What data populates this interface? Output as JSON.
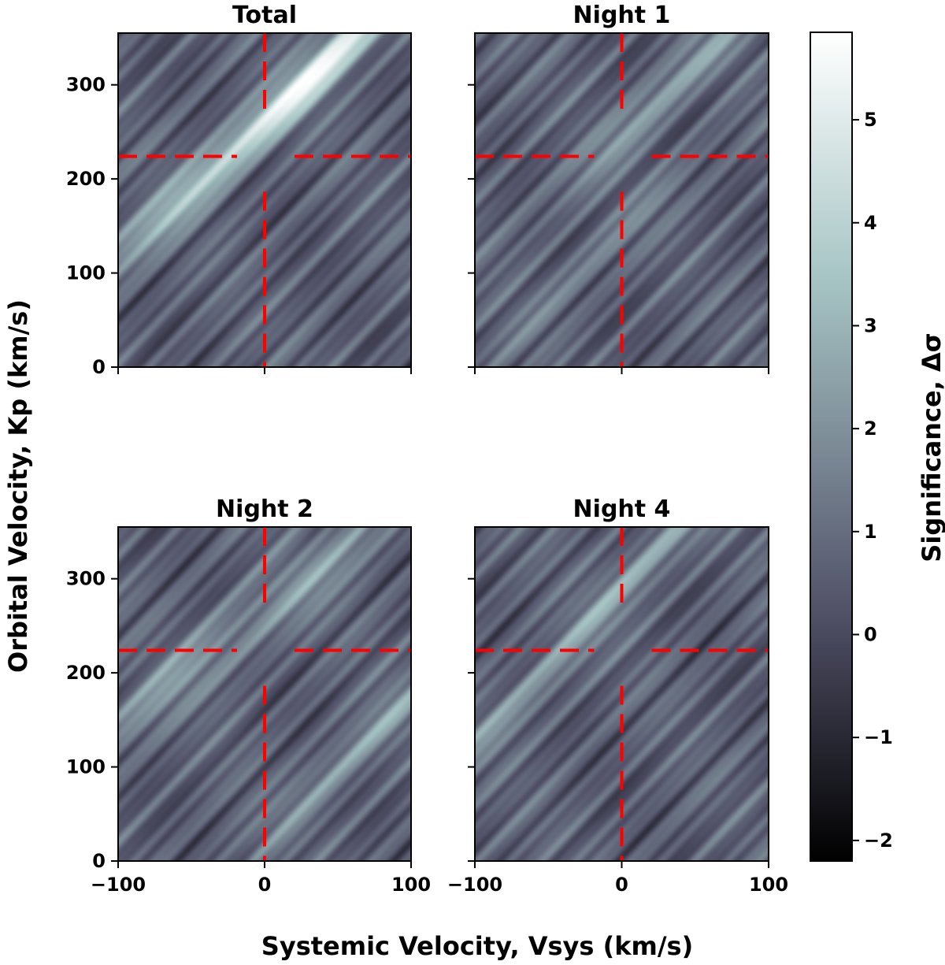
{
  "figure": {
    "ylabel": "Orbital Velocity, Kp (km/s)",
    "xlabel": "Systemic Velocity, Vsys (km/s)",
    "colorbar": {
      "label": "Significance, Δσ",
      "range": [
        -2.2,
        5.85
      ],
      "ticks": [
        -2,
        -1,
        0,
        1,
        2,
        3,
        4,
        5
      ],
      "tick_labels": [
        "−2",
        "−1",
        "0",
        "1",
        "2",
        "3",
        "4",
        "5"
      ],
      "colormap": "bone",
      "colors": [
        "#000000",
        "#515168",
        "#a6c4c4",
        "#ffffff"
      ]
    },
    "marker_color": "#ff0000"
  },
  "chart_data": [
    {
      "type": "heatmap",
      "title": "Total",
      "xlim": [
        -100,
        100
      ],
      "ylim": [
        0,
        355
      ],
      "xticks": [
        -100,
        0,
        100
      ],
      "xtick_labels": [
        "−100",
        "0",
        "100"
      ],
      "yticks": [
        0,
        100,
        200,
        300
      ],
      "ytick_labels": [
        "0",
        "100",
        "200",
        "300"
      ],
      "marker": {
        "vsys": 0,
        "kp": 224
      },
      "peaks": [
        {
          "vsys": 45,
          "kp": 325,
          "sigma": 5.8
        },
        {
          "vsys": -75,
          "kp": 150,
          "sigma": 2.6
        },
        {
          "vsys": -45,
          "kp": 205,
          "sigma": 2.2
        }
      ]
    },
    {
      "type": "heatmap",
      "title": "Night 1",
      "xlim": [
        -100,
        100
      ],
      "ylim": [
        0,
        355
      ],
      "xticks": [
        -100,
        0,
        100
      ],
      "xtick_labels": [
        "−100",
        "0",
        "100"
      ],
      "yticks": [
        0,
        100,
        200,
        300
      ],
      "ytick_labels": [
        "",
        "",
        "",
        ""
      ],
      "marker": {
        "vsys": 0,
        "kp": 224
      },
      "peaks": [
        {
          "vsys": 35,
          "kp": 300,
          "sigma": 3.2
        },
        {
          "vsys": -15,
          "kp": 120,
          "sigma": 2.2
        }
      ]
    },
    {
      "type": "heatmap",
      "title": "Night 2",
      "xlim": [
        -100,
        100
      ],
      "ylim": [
        0,
        355
      ],
      "xticks": [
        -100,
        0,
        100
      ],
      "xtick_labels": [
        "−100",
        "0",
        "100"
      ],
      "yticks": [
        0,
        100,
        200,
        300
      ],
      "ytick_labels": [
        "0",
        "100",
        "200",
        "300"
      ],
      "marker": {
        "vsys": 0,
        "kp": 224
      },
      "peaks": [
        {
          "vsys": 50,
          "kp": 320,
          "sigma": 3.0
        },
        {
          "vsys": -65,
          "kp": 190,
          "sigma": 3.0
        },
        {
          "vsys": 70,
          "kp": 130,
          "sigma": 3.0
        }
      ]
    },
    {
      "type": "heatmap",
      "title": "Night 4",
      "xlim": [
        -100,
        100
      ],
      "ylim": [
        0,
        355
      ],
      "xticks": [
        -100,
        0,
        100
      ],
      "xtick_labels": [
        "−100",
        "0",
        "100"
      ],
      "yticks": [
        0,
        100,
        200,
        300
      ],
      "ytick_labels": [
        "",
        "",
        "",
        ""
      ],
      "marker": {
        "vsys": 0,
        "kp": 224
      },
      "peaks": [
        {
          "vsys": 25,
          "kp": 330,
          "sigma": 3.0
        },
        {
          "vsys": -80,
          "kp": 150,
          "sigma": 2.5
        }
      ]
    }
  ]
}
